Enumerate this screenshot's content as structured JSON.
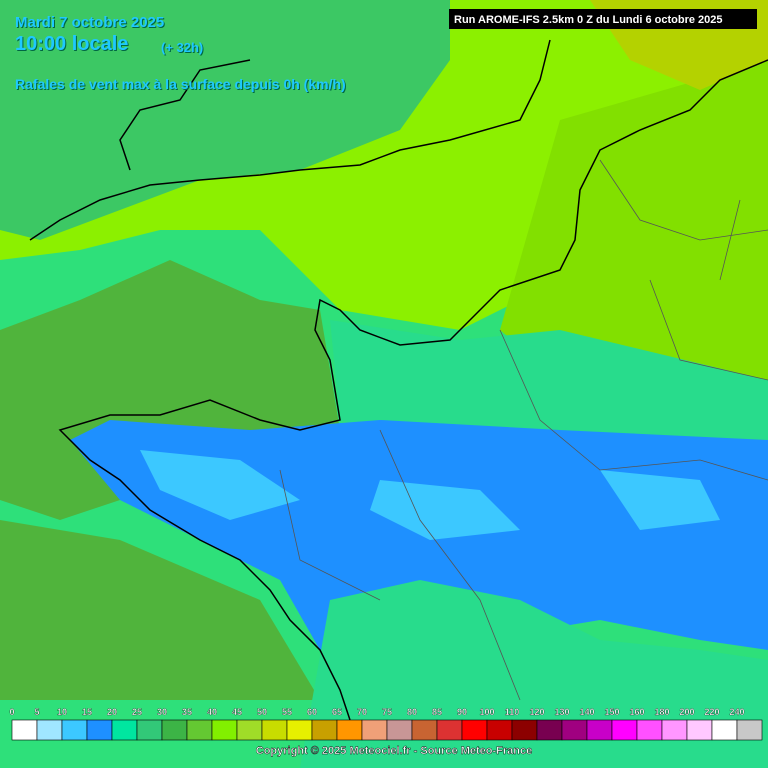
{
  "header": {
    "date": "Mardi 7 octobre 2025",
    "time": "10:00 locale",
    "lead": "(+ 32h)",
    "subtitle": "Rafales de vent max à la surface depuis 0h (km/h)",
    "run": "Run AROME-IFS 2.5km 0 Z du Lundi 6 octobre 2025"
  },
  "legend": {
    "items": [
      {
        "label": "0",
        "color": "#ffffff"
      },
      {
        "label": "5",
        "color": "#a0e6ff"
      },
      {
        "label": "10",
        "color": "#3cc8ff"
      },
      {
        "label": "15",
        "color": "#1e90ff"
      },
      {
        "label": "20",
        "color": "#00e6a0"
      },
      {
        "label": "25",
        "color": "#32c878"
      },
      {
        "label": "30",
        "color": "#3cb446"
      },
      {
        "label": "35",
        "color": "#64c832"
      },
      {
        "label": "40",
        "color": "#82f000"
      },
      {
        "label": "45",
        "color": "#a0dc28"
      },
      {
        "label": "50",
        "color": "#c8dc00"
      },
      {
        "label": "55",
        "color": "#e6f000"
      },
      {
        "label": "60",
        "color": "#c8a000"
      },
      {
        "label": "65",
        "color": "#ff9600"
      },
      {
        "label": "70",
        "color": "#f0a078"
      },
      {
        "label": "75",
        "color": "#c89696"
      },
      {
        "label": "80",
        "color": "#c86432"
      },
      {
        "label": "85",
        "color": "#dc3232"
      },
      {
        "label": "90",
        "color": "#ff0000"
      },
      {
        "label": "100",
        "color": "#c80000"
      },
      {
        "label": "110",
        "color": "#8c0000"
      },
      {
        "label": "120",
        "color": "#780050"
      },
      {
        "label": "130",
        "color": "#a00080"
      },
      {
        "label": "140",
        "color": "#c800c8"
      },
      {
        "label": "150",
        "color": "#ff00ff"
      },
      {
        "label": "160",
        "color": "#ff50ff"
      },
      {
        "label": "180",
        "color": "#ff96ff"
      },
      {
        "label": "200",
        "color": "#ffc8ff"
      },
      {
        "label": "220",
        "color": "#ffffff"
      },
      {
        "label": "240",
        "color": "#c8c8c8"
      }
    ]
  },
  "copyright": "Copyright © 2025 Meteociel.fr - Source Meteo-France"
}
